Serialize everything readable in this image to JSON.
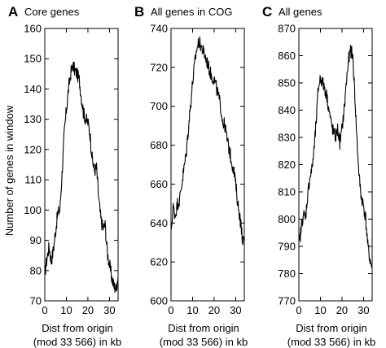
{
  "ylabel": "Number of genes in window",
  "chart_data": [
    {
      "type": "line",
      "panel": "A",
      "title": "Core genes",
      "xlabel_line1": "Dist from origin",
      "xlabel_line2": "(mod 33 566) in kb",
      "xlim": [
        0,
        34
      ],
      "ylim": [
        70,
        160
      ],
      "xticks": [
        0,
        10,
        20,
        30
      ],
      "yticks": [
        70,
        80,
        90,
        100,
        110,
        120,
        130,
        140,
        150,
        160
      ],
      "x": [
        0,
        1,
        2,
        3,
        4,
        5,
        6,
        7,
        8,
        9,
        10,
        11,
        12,
        13,
        14,
        15,
        16,
        17,
        18,
        19,
        20,
        21,
        22,
        23,
        24,
        25,
        26,
        27,
        28,
        29,
        30,
        31,
        32,
        33,
        34
      ],
      "values": [
        79,
        84,
        88,
        83,
        87,
        93,
        99,
        100,
        112,
        125,
        133,
        140,
        145,
        148,
        146,
        145,
        143,
        137,
        132,
        130,
        129,
        125,
        117,
        113,
        114,
        104,
        97,
        94,
        95,
        86,
        82,
        78,
        75,
        74,
        78
      ]
    },
    {
      "type": "line",
      "panel": "B",
      "title": "All genes in COG",
      "xlabel_line1": "Dist from origin",
      "xlabel_line2": "(mod 33 566) in kb",
      "xlim": [
        0,
        34
      ],
      "ylim": [
        600,
        740
      ],
      "xticks": [
        0,
        10,
        20,
        30
      ],
      "yticks": [
        600,
        620,
        640,
        660,
        680,
        700,
        720,
        740
      ],
      "x": [
        0,
        1,
        2,
        3,
        4,
        5,
        6,
        7,
        8,
        9,
        10,
        11,
        12,
        13,
        14,
        15,
        16,
        17,
        18,
        19,
        20,
        21,
        22,
        23,
        24,
        25,
        26,
        27,
        28,
        29,
        30,
        31,
        32,
        33,
        34
      ],
      "values": [
        636,
        648,
        644,
        650,
        652,
        660,
        668,
        675,
        688,
        700,
        712,
        722,
        730,
        733,
        731,
        728,
        725,
        722,
        718,
        715,
        714,
        710,
        705,
        700,
        692,
        690,
        683,
        678,
        672,
        668,
        660,
        650,
        643,
        633,
        628
      ]
    },
    {
      "type": "line",
      "panel": "C",
      "title": "All genes",
      "xlabel_line1": "Dist from origin",
      "xlabel_line2": "(mod 33 566) in kb",
      "xlim": [
        0,
        34
      ],
      "ylim": [
        770,
        870
      ],
      "xticks": [
        0,
        10,
        20,
        30
      ],
      "yticks": [
        770,
        780,
        790,
        800,
        810,
        820,
        830,
        840,
        850,
        860,
        870
      ],
      "x": [
        0,
        1,
        2,
        3,
        4,
        5,
        6,
        7,
        8,
        9,
        10,
        11,
        12,
        13,
        14,
        15,
        16,
        17,
        18,
        19,
        20,
        21,
        22,
        23,
        24,
        25,
        26,
        27,
        28,
        29,
        30,
        31,
        32,
        33,
        34
      ],
      "values": [
        790,
        796,
        802,
        800,
        808,
        815,
        818,
        825,
        835,
        848,
        852,
        850,
        848,
        845,
        840,
        835,
        832,
        830,
        833,
        828,
        833,
        840,
        850,
        858,
        862,
        860,
        845,
        828,
        815,
        808,
        805,
        800,
        790,
        785,
        782
      ]
    }
  ]
}
